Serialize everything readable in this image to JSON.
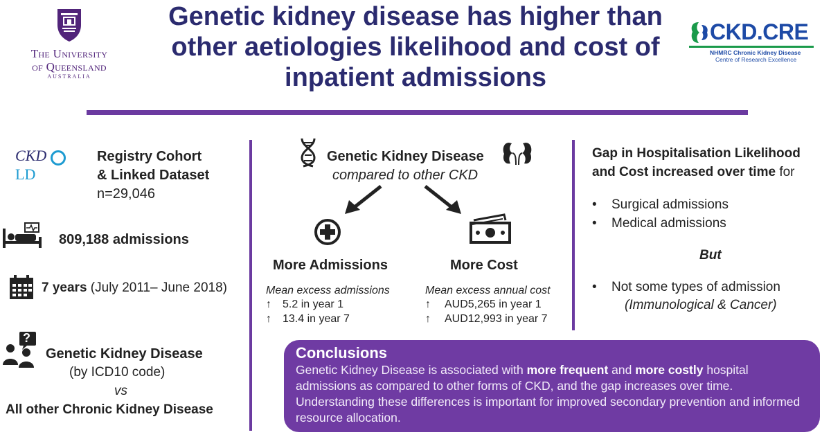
{
  "header": {
    "title": "Genetic kidney disease has higher than other aetiologies likelihood and cost of inpatient admissions",
    "uq_logo": {
      "line1": "The University",
      "line2": "of Queensland",
      "line3": "AUSTRALIA"
    },
    "ckd_logo": {
      "name": "CKD.CRE",
      "sub1": "NHMRC Chronic Kidney Disease",
      "sub2": "Centre of Research Excellence"
    }
  },
  "left": {
    "ckdqld_logo_text": "CKD",
    "ckdqld_logo_tail": "LD",
    "registry_line1": "Registry Cohort",
    "registry_line2": "& Linked Dataset",
    "n_value": "n=29,046",
    "admissions": "809,188 admissions",
    "years_bold": "7 years",
    "years_rest": "(July 2011– June 2018)",
    "question_mark": "?",
    "gkd_label": "Genetic Kidney Disease",
    "icd_label": "(by ICD10 code)",
    "vs": "vs",
    "other_ckd": "All other Chronic Kidney Disease"
  },
  "center": {
    "heading": "Genetic Kidney Disease",
    "subheading": "compared to other CKD",
    "more_admissions": "More Admissions",
    "more_cost": "More Cost",
    "adm_caption": "Mean excess admissions",
    "adm_items": [
      {
        "arrow": "↑",
        "text": "5.2 in year 1"
      },
      {
        "arrow": "↑",
        "text": "13.4  in year 7"
      }
    ],
    "cost_caption": "Mean excess annual cost",
    "cost_items": [
      {
        "arrow": "↑",
        "text": "AUD5,265 in year 1"
      },
      {
        "arrow": "↑",
        "text": "AUD12,993  in year 7"
      }
    ]
  },
  "right": {
    "gap_line1": "Gap in Hospitalisation Likelihood",
    "gap_line2_bold": "and Cost increased over time",
    "gap_line2_rest": " for",
    "bullets": [
      "Surgical admissions",
      "Medical admissions"
    ],
    "but": "But",
    "not_some": "Not some types of admission",
    "exception": "(Immunological & Cancer)"
  },
  "conclusions": {
    "title": "Conclusions",
    "p1": "Genetic Kidney Disease is associated with ",
    "b1": "more frequent",
    "p2": " and ",
    "b2": "more costly",
    "p3": " hospital admissions as compared to other forms of CKD, and the gap increases over time. Understanding these differences is important for improved secondary prevention and informed resource allocation."
  },
  "colors": {
    "purple": "#6b3aa0",
    "navy": "#2b2b6f",
    "ckd_blue": "#1d4aa6",
    "ckd_green": "#1a9a4a"
  }
}
